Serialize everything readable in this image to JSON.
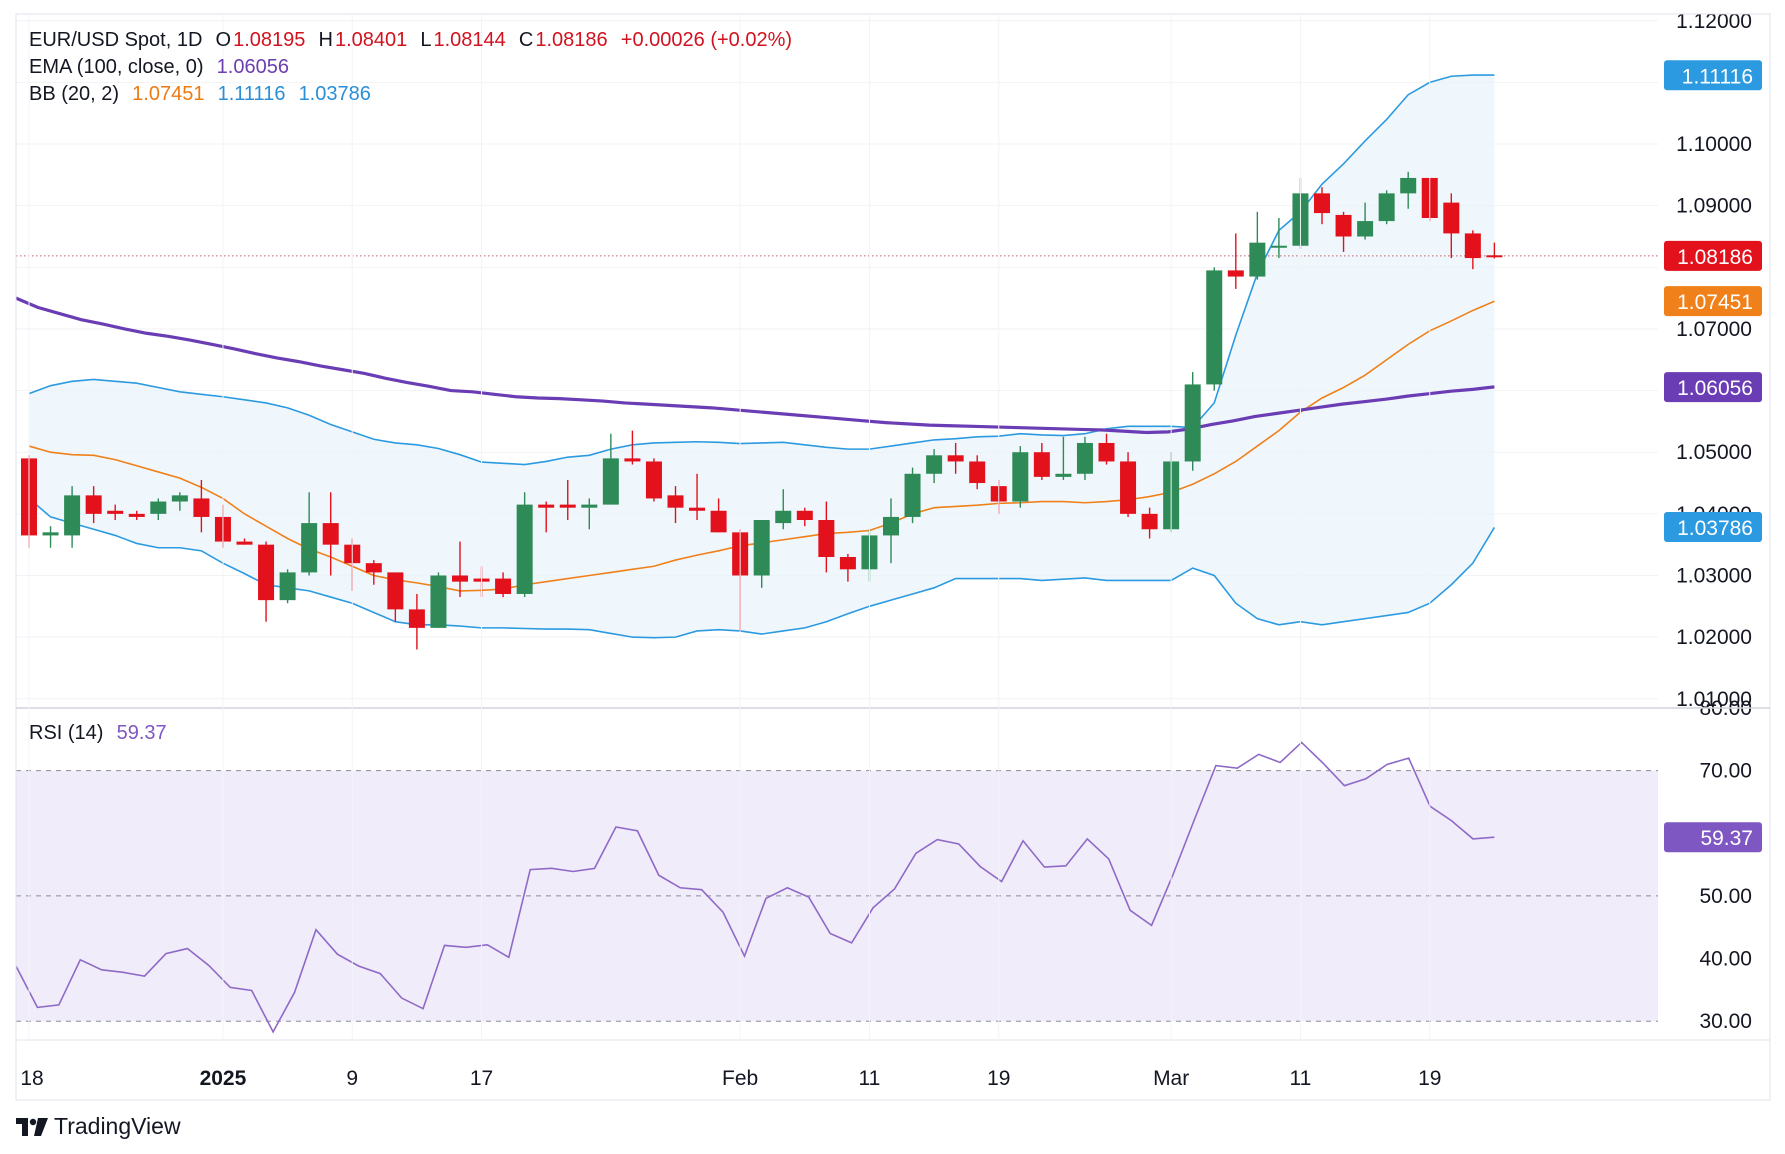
{
  "legend": {
    "symbol": "EUR/USD Spot, 1D",
    "o_label": "O",
    "o_value": "1.08195",
    "h_label": "H",
    "h_value": "1.08401",
    "l_label": "L",
    "l_value": "1.08144",
    "c_label": "C",
    "c_value": "1.08186",
    "change": "+0.00026 (+0.02%)",
    "ema_label": "EMA (100, close, 0)",
    "ema_value": "1.06056",
    "bb_label": "BB (20, 2)",
    "bb_basis": "1.07451",
    "bb_upper": "1.11116",
    "bb_lower": "1.03786",
    "rsi_label": "RSI (14)",
    "rsi_value": "59.37"
  },
  "brand": "TradingView",
  "colors": {
    "up": "#2e8b57",
    "down": "#e3111c",
    "ema": "#6a3db5",
    "bb_basis": "#f0801a",
    "bb_band": "#2c9ae0",
    "bb_fill": "#eaf4fb",
    "rsi": "#8e6ac8",
    "rsi_fill": "#f1ecf9",
    "price_line": "#c0646c"
  },
  "chart_data": [
    {
      "type": "candlestick",
      "title": "EUR/USD Spot, 1D",
      "x_tick_labels": [
        "18",
        "2025",
        "9",
        "17",
        "Feb",
        "11",
        "19",
        "Mar",
        "11",
        "19"
      ],
      "y_tick_labels": [
        "1.12000",
        "1.11116",
        "1.10000",
        "1.09000",
        "1.08186",
        "1.07451",
        "1.07000",
        "1.06056",
        "1.05000",
        "1.04000",
        "1.03786",
        "1.03000",
        "1.02000",
        "1.01000"
      ],
      "ylim": [
        1.0085,
        1.1211
      ],
      "grid": true,
      "price_tags": [
        {
          "value": 1.11116,
          "label": "1.11116",
          "color": "#2c9ae0"
        },
        {
          "value": 1.08186,
          "label": "1.08186",
          "color": "#e3111c"
        },
        {
          "value": 1.07451,
          "label": "1.07451",
          "color": "#f0801a"
        },
        {
          "value": 1.06056,
          "label": "1.06056",
          "color": "#6a3db5"
        },
        {
          "value": 1.03786,
          "label": "1.03786",
          "color": "#2c9ae0"
        }
      ],
      "candles": [
        {
          "date": "Dec 18",
          "o": 1.049,
          "h": 1.0495,
          "l": 1.0345,
          "c": 1.0365
        },
        {
          "date": "Dec 19",
          "o": 1.0365,
          "h": 1.038,
          "l": 1.0345,
          "c": 1.037
        },
        {
          "date": "Dec 20",
          "o": 1.0365,
          "h": 1.0445,
          "l": 1.0345,
          "c": 1.043
        },
        {
          "date": "Dec 23",
          "o": 1.043,
          "h": 1.0445,
          "l": 1.0385,
          "c": 1.04
        },
        {
          "date": "Dec 24",
          "o": 1.0405,
          "h": 1.0415,
          "l": 1.039,
          "c": 1.04
        },
        {
          "date": "Dec 26",
          "o": 1.04,
          "h": 1.0405,
          "l": 1.039,
          "c": 1.0395
        },
        {
          "date": "Dec 27",
          "o": 1.04,
          "h": 1.0425,
          "l": 1.039,
          "c": 1.042
        },
        {
          "date": "Dec 30",
          "o": 1.042,
          "h": 1.0435,
          "l": 1.0405,
          "c": 1.043
        },
        {
          "date": "Dec 31",
          "o": 1.0425,
          "h": 1.0455,
          "l": 1.037,
          "c": 1.0395
        },
        {
          "date": "Jan 1",
          "o": 1.0395,
          "h": 1.0415,
          "l": 1.0345,
          "c": 1.0355
        },
        {
          "date": "Jan 2",
          "o": 1.0355,
          "h": 1.036,
          "l": 1.035,
          "c": 1.035
        },
        {
          "date": "Jan 3",
          "o": 1.035,
          "h": 1.0355,
          "l": 1.0225,
          "c": 1.026
        },
        {
          "date": "Jan 6",
          "o": 1.026,
          "h": 1.031,
          "l": 1.0255,
          "c": 1.0305
        },
        {
          "date": "Jan 7",
          "o": 1.0305,
          "h": 1.0435,
          "l": 1.03,
          "c": 1.0385
        },
        {
          "date": "Jan 8",
          "o": 1.0385,
          "h": 1.0435,
          "l": 1.03,
          "c": 1.035
        },
        {
          "date": "Jan 9",
          "o": 1.035,
          "h": 1.036,
          "l": 1.0275,
          "c": 1.032
        },
        {
          "date": "Jan 10",
          "o": 1.032,
          "h": 1.0325,
          "l": 1.0285,
          "c": 1.0305
        },
        {
          "date": "Jan 13",
          "o": 1.0305,
          "h": 1.0305,
          "l": 1.0225,
          "c": 1.0245
        },
        {
          "date": "Jan 14",
          "o": 1.0245,
          "h": 1.027,
          "l": 1.018,
          "c": 1.0215
        },
        {
          "date": "Jan 15",
          "o": 1.0215,
          "h": 1.0305,
          "l": 1.0215,
          "c": 1.03
        },
        {
          "date": "Jan 16",
          "o": 1.03,
          "h": 1.0355,
          "l": 1.0265,
          "c": 1.029
        },
        {
          "date": "Jan 17",
          "o": 1.0295,
          "h": 1.0315,
          "l": 1.0265,
          "c": 1.029
        },
        {
          "date": "Jan 20",
          "o": 1.0295,
          "h": 1.0305,
          "l": 1.0265,
          "c": 1.027
        },
        {
          "date": "Jan 21",
          "o": 1.027,
          "h": 1.0435,
          "l": 1.0265,
          "c": 1.0415
        },
        {
          "date": "Jan 22",
          "o": 1.0415,
          "h": 1.042,
          "l": 1.037,
          "c": 1.041
        },
        {
          "date": "Jan 23",
          "o": 1.0415,
          "h": 1.0455,
          "l": 1.039,
          "c": 1.041
        },
        {
          "date": "Jan 24",
          "o": 1.041,
          "h": 1.0425,
          "l": 1.0375,
          "c": 1.0415
        },
        {
          "date": "Jan 27",
          "o": 1.0415,
          "h": 1.053,
          "l": 1.0415,
          "c": 1.049
        },
        {
          "date": "Jan 28",
          "o": 1.049,
          "h": 1.0535,
          "l": 1.048,
          "c": 1.0485
        },
        {
          "date": "Jan 29",
          "o": 1.0485,
          "h": 1.049,
          "l": 1.042,
          "c": 1.0425
        },
        {
          "date": "Jan 30",
          "o": 1.043,
          "h": 1.0445,
          "l": 1.0385,
          "c": 1.041
        },
        {
          "date": "Jan 31",
          "o": 1.041,
          "h": 1.0465,
          "l": 1.039,
          "c": 1.0405
        },
        {
          "date": "Feb 1",
          "o": 1.0405,
          "h": 1.0425,
          "l": 1.037,
          "c": 1.037
        },
        {
          "date": "Feb 3",
          "o": 1.037,
          "h": 1.0375,
          "l": 1.021,
          "c": 1.03
        },
        {
          "date": "Feb 4",
          "o": 1.03,
          "h": 1.039,
          "l": 1.028,
          "c": 1.039
        },
        {
          "date": "Feb 5",
          "o": 1.0385,
          "h": 1.044,
          "l": 1.0375,
          "c": 1.0405
        },
        {
          "date": "Feb 6",
          "o": 1.0405,
          "h": 1.041,
          "l": 1.038,
          "c": 1.039
        },
        {
          "date": "Feb 7",
          "o": 1.039,
          "h": 1.042,
          "l": 1.0305,
          "c": 1.033
        },
        {
          "date": "Feb 10",
          "o": 1.033,
          "h": 1.0335,
          "l": 1.029,
          "c": 1.031
        },
        {
          "date": "Feb 11",
          "o": 1.031,
          "h": 1.0375,
          "l": 1.029,
          "c": 1.0365
        },
        {
          "date": "Feb 12",
          "o": 1.0365,
          "h": 1.0425,
          "l": 1.032,
          "c": 1.0395
        },
        {
          "date": "Feb 13",
          "o": 1.0395,
          "h": 1.0475,
          "l": 1.0385,
          "c": 1.0465
        },
        {
          "date": "Feb 14",
          "o": 1.0465,
          "h": 1.0505,
          "l": 1.045,
          "c": 1.0495
        },
        {
          "date": "Feb 17",
          "o": 1.0495,
          "h": 1.0515,
          "l": 1.0465,
          "c": 1.0485
        },
        {
          "date": "Feb 18",
          "o": 1.0485,
          "h": 1.0495,
          "l": 1.044,
          "c": 1.045
        },
        {
          "date": "Feb 19",
          "o": 1.0445,
          "h": 1.0455,
          "l": 1.04,
          "c": 1.042
        },
        {
          "date": "Feb 20",
          "o": 1.042,
          "h": 1.051,
          "l": 1.041,
          "c": 1.05
        },
        {
          "date": "Feb 21",
          "o": 1.05,
          "h": 1.0515,
          "l": 1.0455,
          "c": 1.046
        },
        {
          "date": "Feb 24",
          "o": 1.046,
          "h": 1.0525,
          "l": 1.0455,
          "c": 1.0465
        },
        {
          "date": "Feb 25",
          "o": 1.0465,
          "h": 1.0525,
          "l": 1.0455,
          "c": 1.0515
        },
        {
          "date": "Feb 26",
          "o": 1.0515,
          "h": 1.053,
          "l": 1.048,
          "c": 1.0485
        },
        {
          "date": "Feb 27",
          "o": 1.0485,
          "h": 1.05,
          "l": 1.0395,
          "c": 1.04
        },
        {
          "date": "Feb 28",
          "o": 1.04,
          "h": 1.041,
          "l": 1.036,
          "c": 1.0375
        },
        {
          "date": "Mar 3",
          "o": 1.0375,
          "h": 1.05,
          "l": 1.037,
          "c": 1.0485
        },
        {
          "date": "Mar 4",
          "o": 1.0485,
          "h": 1.063,
          "l": 1.047,
          "c": 1.061
        },
        {
          "date": "Mar 5",
          "o": 1.061,
          "h": 1.08,
          "l": 1.06,
          "c": 1.0795
        },
        {
          "date": "Mar 6",
          "o": 1.0795,
          "h": 1.0855,
          "l": 1.0765,
          "c": 1.0785
        },
        {
          "date": "Mar 7",
          "o": 1.0785,
          "h": 1.089,
          "l": 1.078,
          "c": 1.084
        },
        {
          "date": "Mar 10",
          "o": 1.0835,
          "h": 1.088,
          "l": 1.0815,
          "c": 1.0835
        },
        {
          "date": "Mar 11",
          "o": 1.0835,
          "h": 1.0945,
          "l": 1.083,
          "c": 1.092
        },
        {
          "date": "Mar 12",
          "o": 1.092,
          "h": 1.093,
          "l": 1.087,
          "c": 1.0888
        },
        {
          "date": "Mar 13",
          "o": 1.0885,
          "h": 1.089,
          "l": 1.0825,
          "c": 1.085
        },
        {
          "date": "Mar 14",
          "o": 1.085,
          "h": 1.0905,
          "l": 1.0845,
          "c": 1.0875
        },
        {
          "date": "Mar 17",
          "o": 1.0875,
          "h": 1.0925,
          "l": 1.087,
          "c": 1.092
        },
        {
          "date": "Mar 18",
          "o": 1.092,
          "h": 1.0955,
          "l": 1.0895,
          "c": 1.0945
        },
        {
          "date": "Mar 19",
          "o": 1.0945,
          "h": 1.0945,
          "l": 1.0875,
          "c": 1.088
        },
        {
          "date": "Mar 20",
          "o": 1.0905,
          "h": 1.092,
          "l": 1.0815,
          "c": 1.0855
        },
        {
          "date": "Mar 21",
          "o": 1.0855,
          "h": 1.086,
          "l": 1.0797,
          "c": 1.0815
        },
        {
          "date": "Mar 24",
          "o": 1.08195,
          "h": 1.08401,
          "l": 1.08144,
          "c": 1.08186
        }
      ],
      "ema_100": [
        1.075,
        1.0735,
        1.0725,
        1.0715,
        1.0708,
        1.07,
        1.0693,
        1.0688,
        1.0682,
        1.0675,
        1.0668,
        1.066,
        1.0653,
        1.0647,
        1.064,
        1.0634,
        1.0628,
        1.062,
        1.0613,
        1.0607,
        1.06,
        1.0598,
        1.0594,
        1.059,
        1.0588,
        1.0587,
        1.0585,
        1.0583,
        1.058,
        1.0578,
        1.0576,
        1.0574,
        1.0572,
        1.0569,
        1.0566,
        1.0563,
        1.056,
        1.0557,
        1.0554,
        1.0551,
        1.0548,
        1.0546,
        1.0544,
        1.0543,
        1.0542,
        1.0541,
        1.054,
        1.0539,
        1.0538,
        1.0537,
        1.0536,
        1.0534,
        1.0532,
        1.0533,
        1.0538,
        1.0545,
        1.0551,
        1.0558,
        1.0563,
        1.0568,
        1.0573,
        1.0578,
        1.0582,
        1.0586,
        1.0591,
        1.0595,
        1.0599,
        1.0602,
        1.0606
      ],
      "bb_upper": [
        1.0595,
        1.0608,
        1.0615,
        1.0618,
        1.0615,
        1.0612,
        1.0605,
        1.0598,
        1.0594,
        1.059,
        1.0585,
        1.058,
        1.0572,
        1.056,
        1.0545,
        1.0533,
        1.0521,
        1.0515,
        1.0512,
        1.0506,
        1.0496,
        1.0484,
        1.0482,
        1.048,
        1.0485,
        1.0492,
        1.0495,
        1.0505,
        1.0512,
        1.0515,
        1.0516,
        1.0517,
        1.0516,
        1.0514,
        1.0515,
        1.0516,
        1.0512,
        1.0508,
        1.0505,
        1.0505,
        1.051,
        1.0515,
        1.052,
        1.0522,
        1.0525,
        1.0526,
        1.053,
        1.0528,
        1.0527,
        1.053,
        1.0538,
        1.0542,
        1.0542,
        1.0542,
        1.054,
        1.058,
        1.069,
        1.079,
        1.086,
        1.089,
        1.0935,
        1.0968,
        1.1005,
        1.104,
        1.108,
        1.11,
        1.111,
        1.1112,
        1.1112
      ],
      "bb_basis": [
        1.051,
        1.05,
        1.0496,
        1.0495,
        1.0488,
        1.0478,
        1.0468,
        1.0458,
        1.0443,
        1.0425,
        1.04,
        1.038,
        1.036,
        1.0343,
        1.033,
        1.0315,
        1.03,
        1.0293,
        1.0288,
        1.0282,
        1.0275,
        1.0276,
        1.0278,
        1.0285,
        1.029,
        1.0295,
        1.03,
        1.0305,
        1.031,
        1.0315,
        1.0325,
        1.0333,
        1.034,
        1.0348,
        1.0353,
        1.0358,
        1.0363,
        1.0368,
        1.037,
        1.0373,
        1.0385,
        1.04,
        1.041,
        1.0412,
        1.0414,
        1.0417,
        1.0418,
        1.042,
        1.042,
        1.0418,
        1.042,
        1.0423,
        1.0428,
        1.0435,
        1.0448,
        1.0465,
        1.0485,
        1.051,
        1.0535,
        1.0565,
        1.0588,
        1.0605,
        1.0625,
        1.065,
        1.0675,
        1.0697,
        1.0713,
        1.073,
        1.0745
      ],
      "bb_lower": [
        1.0425,
        1.0395,
        1.0385,
        1.0375,
        1.0365,
        1.0352,
        1.0345,
        1.0345,
        1.034,
        1.032,
        1.0303,
        1.0285,
        1.028,
        1.0275,
        1.0265,
        1.0255,
        1.024,
        1.0225,
        1.022,
        1.022,
        1.0218,
        1.0215,
        1.0215,
        1.0214,
        1.0213,
        1.0213,
        1.0212,
        1.0206,
        1.02,
        1.0199,
        1.02,
        1.021,
        1.0212,
        1.021,
        1.0205,
        1.021,
        1.0215,
        1.0225,
        1.0238,
        1.025,
        1.026,
        1.027,
        1.028,
        1.0295,
        1.0295,
        1.0295,
        1.0295,
        1.0292,
        1.0294,
        1.0296,
        1.0292,
        1.0292,
        1.0292,
        1.0292,
        1.0312,
        1.03,
        1.0255,
        1.023,
        1.022,
        1.0225,
        1.022,
        1.0225,
        1.023,
        1.0235,
        1.024,
        1.0255,
        1.0285,
        1.032,
        1.0378
      ]
    },
    {
      "type": "line",
      "title": "RSI (14)",
      "y_tick_labels": [
        "80.00",
        "70.00",
        "59.37",
        "50.00",
        "40.00",
        "30.00"
      ],
      "ylim": [
        27,
        80
      ],
      "levels": [
        70,
        50,
        30
      ],
      "last_value": 59.37,
      "values": [
        38.8,
        32.2,
        32.6,
        39.8,
        38.2,
        37.8,
        37.2,
        40.8,
        41.6,
        38.9,
        35.4,
        34.9,
        28.3,
        34.6,
        44.6,
        40.7,
        38.8,
        37.6,
        33.7,
        32.0,
        42.1,
        41.8,
        42.2,
        40.2,
        54.2,
        54.4,
        53.9,
        54.4,
        61.0,
        60.4,
        53.3,
        51.3,
        51.0,
        47.4,
        40.4,
        49.6,
        51.3,
        49.8,
        44.0,
        42.5,
        48.1,
        51.1,
        56.8,
        59.0,
        58.3,
        54.7,
        52.3,
        58.8,
        54.6,
        54.8,
        59.1,
        55.9,
        47.7,
        45.3,
        53.4,
        62.2,
        70.8,
        70.4,
        72.6,
        71.3,
        74.5,
        71.2,
        67.6,
        68.7,
        71.0,
        72.0,
        64.3,
        62.0,
        59.1,
        59.37
      ]
    }
  ]
}
